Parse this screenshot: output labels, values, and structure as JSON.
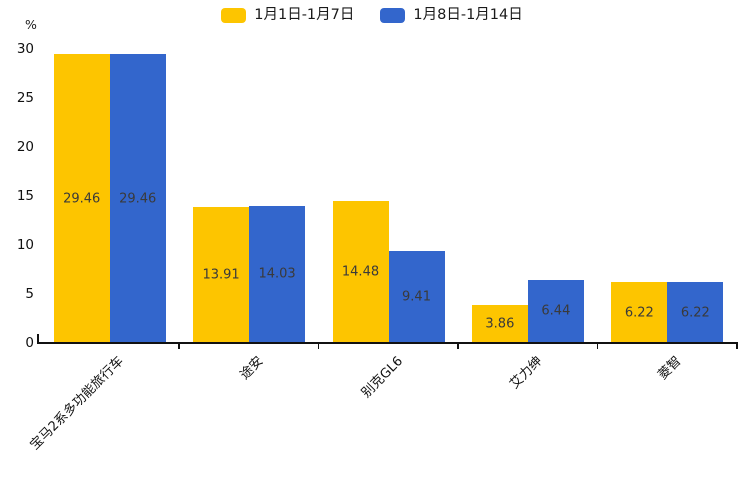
{
  "chart_data": {
    "type": "bar",
    "title": "",
    "xlabel": "",
    "ylabel": "%",
    "categories": [
      "宝马2系多功能旅行车",
      "途安",
      "别克GL6",
      "艾力绅",
      "菱智"
    ],
    "series": [
      {
        "name": "1月1日-1月7日",
        "color": "#FDC500",
        "values": [
          29.46,
          13.91,
          14.48,
          3.86,
          6.22
        ]
      },
      {
        "name": "1月8日-1月14日",
        "color": "#3366CC",
        "values": [
          29.46,
          14.03,
          9.41,
          6.44,
          6.22
        ]
      }
    ],
    "ylim": [
      0,
      30
    ],
    "yticks": [
      0,
      5,
      10,
      15,
      20,
      25,
      30
    ],
    "grid": false,
    "legend_position": "top",
    "value_labels_shown": true,
    "value_label_color": "#3a3a3a",
    "axis_color": "#111111",
    "xtick_rotation_deg": 45
  }
}
